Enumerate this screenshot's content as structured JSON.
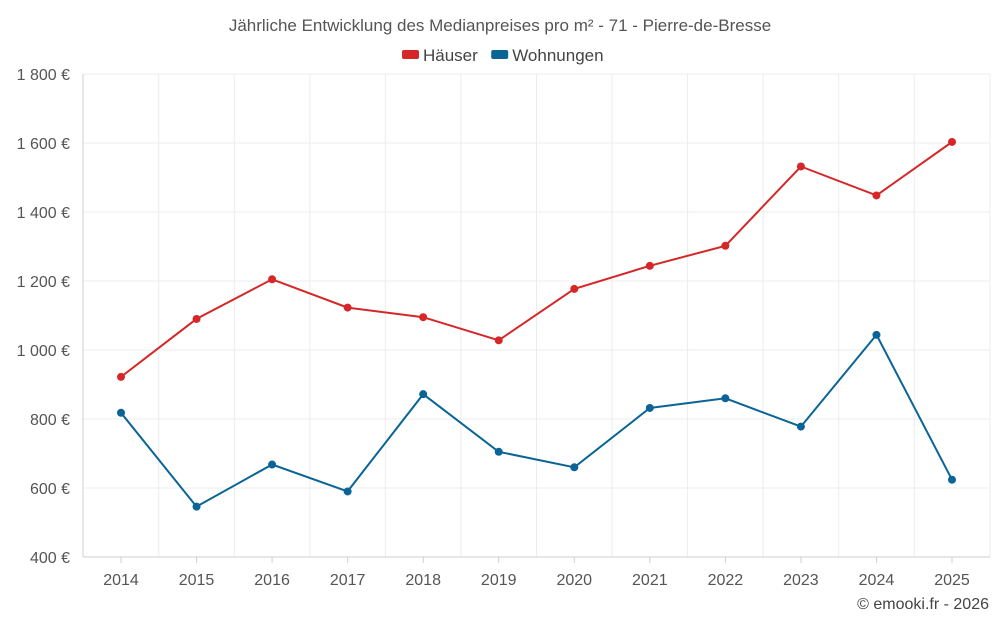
{
  "chart_data": {
    "type": "line",
    "title": "Jährliche Entwicklung des Medianpreises pro m² - 71 - Pierre-de-Bresse",
    "categories": [
      "2014",
      "2015",
      "2016",
      "2017",
      "2018",
      "2019",
      "2020",
      "2021",
      "2022",
      "2023",
      "2024",
      "2025"
    ],
    "series": [
      {
        "name": "Häuser",
        "color": "#d62728",
        "values": [
          922,
          1090,
          1205,
          1123,
          1095,
          1028,
          1177,
          1244,
          1302,
          1532,
          1448,
          1603
        ]
      },
      {
        "name": "Wohnungen",
        "color": "#0a6496",
        "values": [
          818,
          546,
          668,
          590,
          872,
          705,
          660,
          832,
          860,
          778,
          1044,
          624
        ]
      }
    ],
    "ylim": [
      400,
      1800
    ],
    "yticks": [
      "400 €",
      "600 €",
      "800 €",
      "1 000 €",
      "1 200 €",
      "1 400 €",
      "1 600 €",
      "1 800 €"
    ],
    "ytick_values": [
      400,
      600,
      800,
      1000,
      1200,
      1400,
      1600,
      1800
    ],
    "grid": true,
    "legend_position": "top-center"
  },
  "credit": "© emooki.fr - 2026"
}
